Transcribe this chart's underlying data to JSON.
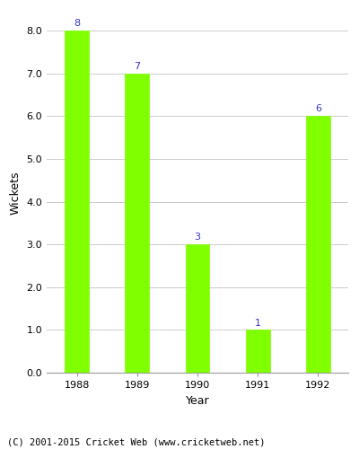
{
  "years": [
    "1988",
    "1989",
    "1990",
    "1991",
    "1992"
  ],
  "values": [
    8,
    7,
    3,
    1,
    6
  ],
  "bar_color": "#7FFF00",
  "bar_edgecolor": "#7FFF00",
  "xlabel": "Year",
  "ylabel": "Wickets",
  "ylim": [
    0,
    8.4
  ],
  "yticks": [
    0.0,
    1.0,
    2.0,
    3.0,
    4.0,
    5.0,
    6.0,
    7.0,
    8.0
  ],
  "label_color": "#3333cc",
  "label_fontsize": 8,
  "axis_label_fontsize": 9,
  "tick_fontsize": 8,
  "footer_text": "(C) 2001-2015 Cricket Web (www.cricketweb.net)",
  "footer_fontsize": 7.5,
  "background_color": "#ffffff",
  "grid_color": "#cccccc",
  "bar_width": 0.4
}
